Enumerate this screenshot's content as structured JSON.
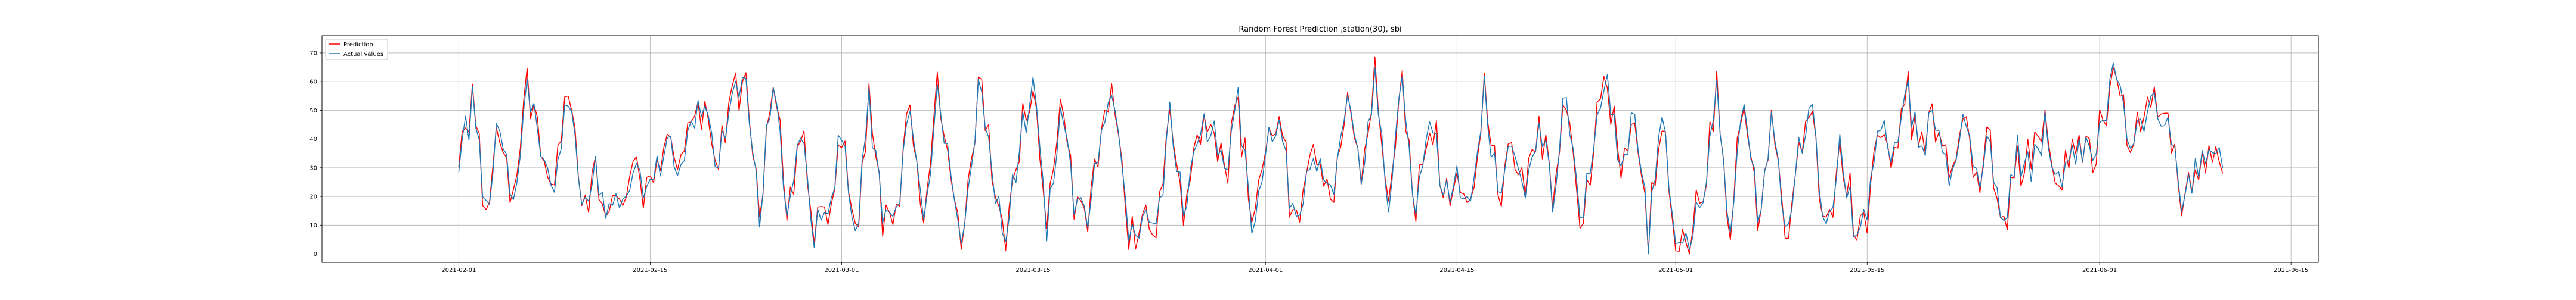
{
  "chart_data": {
    "type": "line",
    "title": "Random Forest Prediction ,station(30), sbi",
    "xlabel": "",
    "ylabel": "",
    "grid": true,
    "legend_position": "upper left",
    "x_range": [
      "2021-01-22",
      "2021-06-17"
    ],
    "ylim": [
      -3,
      76
    ],
    "x_ticks": [
      "2021-02-01",
      "2021-02-15",
      "2021-03-01",
      "2021-03-15",
      "2021-04-01",
      "2021-04-15",
      "2021-05-01",
      "2021-05-15",
      "2021-06-01",
      "2021-06-15"
    ],
    "y_ticks": [
      0,
      10,
      20,
      30,
      40,
      50,
      60,
      70
    ],
    "date_range": [
      "2021-02-01",
      "2021-06-10"
    ],
    "series": [
      {
        "name": "Prediction",
        "color": "#ff0000"
      },
      {
        "name": "Actual values",
        "color": "#1f77b4"
      }
    ],
    "points_per_day": 4,
    "anchors": [
      [
        "2021-02-01",
        30
      ],
      [
        "2021-02-02",
        52
      ],
      [
        "2021-02-03",
        14
      ],
      [
        "2021-02-04",
        48
      ],
      [
        "2021-02-05",
        20
      ],
      [
        "2021-02-06",
        62
      ],
      [
        "2021-02-07",
        35
      ],
      [
        "2021-02-08",
        25
      ],
      [
        "2021-02-09",
        55
      ],
      [
        "2021-02-10",
        18
      ],
      [
        "2021-02-11",
        30
      ],
      [
        "2021-02-12",
        15
      ],
      [
        "2021-02-13",
        22
      ],
      [
        "2021-02-14",
        33
      ],
      [
        "2021-02-15",
        20
      ],
      [
        "2021-02-16",
        38
      ],
      [
        "2021-02-17",
        32
      ],
      [
        "2021-02-18",
        40
      ],
      [
        "2021-02-19",
        58
      ],
      [
        "2021-02-20",
        30
      ],
      [
        "2021-02-21",
        55
      ],
      [
        "2021-02-22",
        62
      ],
      [
        "2021-02-23",
        15
      ],
      [
        "2021-02-24",
        64
      ],
      [
        "2021-02-25",
        12
      ],
      [
        "2021-02-26",
        45
      ],
      [
        "2021-02-27",
        6
      ],
      [
        "2021-02-28",
        18
      ],
      [
        "2021-03-01",
        40
      ],
      [
        "2021-03-02",
        4
      ],
      [
        "2021-03-03",
        55
      ],
      [
        "2021-03-04",
        10
      ],
      [
        "2021-03-05",
        12
      ],
      [
        "2021-03-06",
        50
      ],
      [
        "2021-03-07",
        8
      ],
      [
        "2021-03-08",
        60
      ],
      [
        "2021-03-09",
        22
      ],
      [
        "2021-03-10",
        6
      ],
      [
        "2021-03-11",
        58
      ],
      [
        "2021-03-12",
        30
      ],
      [
        "2021-03-13",
        5
      ],
      [
        "2021-03-14",
        40
      ],
      [
        "2021-03-15",
        58
      ],
      [
        "2021-03-16",
        10
      ],
      [
        "2021-03-17",
        52
      ],
      [
        "2021-03-18",
        20
      ],
      [
        "2021-03-19",
        8
      ],
      [
        "2021-03-20",
        45
      ],
      [
        "2021-03-21",
        56
      ],
      [
        "2021-03-22",
        6
      ],
      [
        "2021-03-23",
        10
      ],
      [
        "2021-03-24",
        4
      ],
      [
        "2021-03-25",
        50
      ],
      [
        "2021-03-26",
        12
      ],
      [
        "2021-03-27",
        40
      ],
      [
        "2021-03-28",
        48
      ],
      [
        "2021-03-29",
        25
      ],
      [
        "2021-03-30",
        55
      ],
      [
        "2021-03-31",
        10
      ],
      [
        "2021-04-01",
        38
      ],
      [
        "2021-04-02",
        45
      ],
      [
        "2021-04-03",
        15
      ],
      [
        "2021-04-04",
        25
      ],
      [
        "2021-04-05",
        30
      ],
      [
        "2021-04-06",
        20
      ],
      [
        "2021-04-07",
        62
      ],
      [
        "2021-04-08",
        30
      ],
      [
        "2021-04-09",
        60
      ],
      [
        "2021-04-10",
        15
      ],
      [
        "2021-04-11",
        66
      ],
      [
        "2021-04-12",
        10
      ],
      [
        "2021-04-13",
        52
      ],
      [
        "2021-04-14",
        18
      ],
      [
        "2021-04-15",
        30
      ],
      [
        "2021-04-16",
        12
      ],
      [
        "2021-04-17",
        55
      ],
      [
        "2021-04-18",
        20
      ],
      [
        "2021-04-19",
        40
      ],
      [
        "2021-04-20",
        15
      ],
      [
        "2021-04-21",
        45
      ],
      [
        "2021-04-22",
        20
      ],
      [
        "2021-04-23",
        60
      ],
      [
        "2021-04-24",
        10
      ],
      [
        "2021-04-25",
        40
      ],
      [
        "2021-04-26",
        62
      ],
      [
        "2021-04-27",
        25
      ],
      [
        "2021-04-28",
        55
      ],
      [
        "2021-04-29",
        5
      ],
      [
        "2021-04-30",
        45
      ],
      [
        "2021-05-01",
        10
      ],
      [
        "2021-05-02",
        8
      ],
      [
        "2021-05-03",
        15
      ],
      [
        "2021-05-04",
        60
      ],
      [
        "2021-05-05",
        5
      ],
      [
        "2021-05-06",
        58
      ],
      [
        "2021-05-07",
        12
      ],
      [
        "2021-05-08",
        45
      ],
      [
        "2021-05-09",
        8
      ],
      [
        "2021-05-10",
        35
      ],
      [
        "2021-05-11",
        50
      ],
      [
        "2021-05-12",
        6
      ],
      [
        "2021-05-13",
        40
      ],
      [
        "2021-05-14",
        10
      ],
      [
        "2021-05-15",
        14
      ],
      [
        "2021-05-16",
        48
      ],
      [
        "2021-05-17",
        32
      ],
      [
        "2021-05-18",
        55
      ],
      [
        "2021-05-19",
        35
      ],
      [
        "2021-05-20",
        50
      ],
      [
        "2021-05-21",
        30
      ],
      [
        "2021-05-22",
        48
      ],
      [
        "2021-05-23",
        25
      ],
      [
        "2021-05-24",
        38
      ],
      [
        "2021-05-25",
        12
      ],
      [
        "2021-05-26",
        35
      ],
      [
        "2021-05-27",
        28
      ],
      [
        "2021-05-28",
        45
      ],
      [
        "2021-05-29",
        22
      ],
      [
        "2021-05-30",
        35
      ],
      [
        "2021-05-31",
        38
      ],
      [
        "2021-06-01",
        40
      ],
      [
        "2021-06-02",
        66
      ],
      [
        "2021-06-03",
        42
      ],
      [
        "2021-06-04",
        40
      ],
      [
        "2021-06-05",
        55
      ],
      [
        "2021-06-06",
        44
      ],
      [
        "2021-06-07",
        20
      ],
      [
        "2021-06-08",
        30
      ],
      [
        "2021-06-09",
        40
      ],
      [
        "2021-06-10",
        30
      ]
    ]
  }
}
